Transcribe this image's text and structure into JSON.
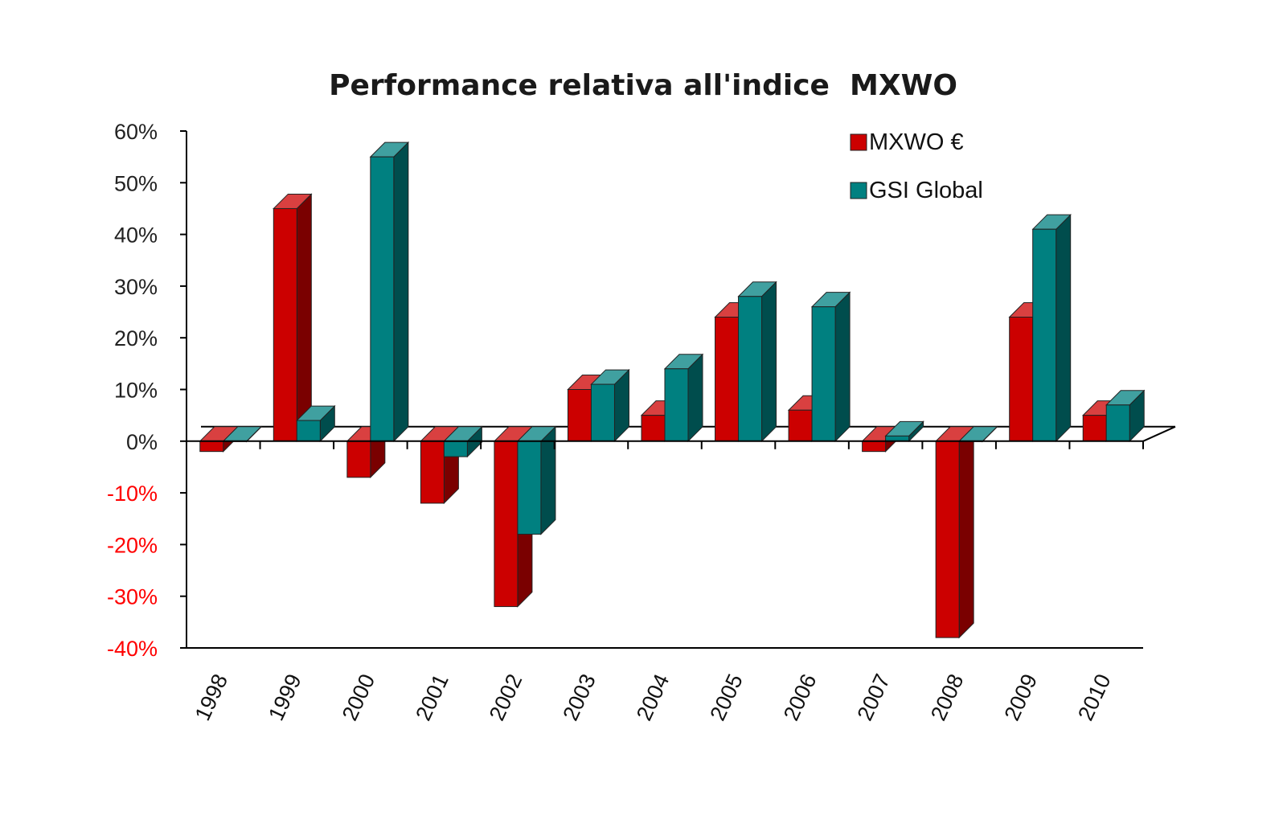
{
  "chart_data": {
    "type": "bar",
    "title": "Performance relativa all'indice  MXWO",
    "xlabel": "",
    "ylabel": "",
    "categories": [
      "1998",
      "1999",
      "2000",
      "2001",
      "2002",
      "2003",
      "2004",
      "2005",
      "2006",
      "2007",
      "2008",
      "2009",
      "2010"
    ],
    "series": [
      {
        "name": "MXWO €",
        "color": "#cc0000",
        "values": [
          -2,
          45,
          -7,
          -12,
          -32,
          10,
          5,
          24,
          6,
          -2,
          -38,
          24,
          5
        ]
      },
      {
        "name": "GSI Global",
        "color": "#008080",
        "values": [
          0,
          4,
          55,
          -3,
          -18,
          11,
          14,
          28,
          26,
          1,
          0,
          41,
          7
        ]
      }
    ],
    "ylim": [
      -40,
      60
    ],
    "yticks": [
      "60%",
      "50%",
      "40%",
      "30%",
      "20%",
      "10%",
      "0%",
      "-10%",
      "-20%",
      "-30%",
      "-40%"
    ],
    "negative_tick_color": "#ff0000",
    "positive_tick_color": "#222222",
    "legend_position": "top-right",
    "grid": false,
    "three_d": true
  }
}
